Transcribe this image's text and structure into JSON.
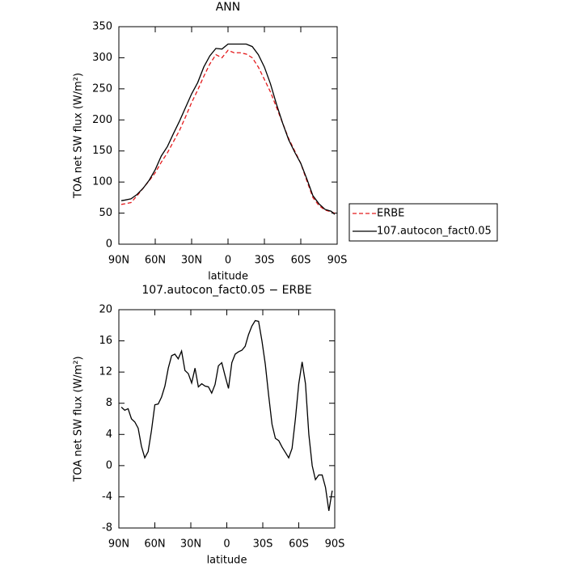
{
  "chart_data": [
    {
      "type": "line",
      "title": "ANN",
      "xlabel": "latitude",
      "ylabel": "TOA net SW flux (W/m²)",
      "x": [
        88,
        85,
        80,
        75,
        70,
        65,
        60,
        55,
        50,
        45,
        40,
        35,
        30,
        25,
        20,
        15,
        10,
        5,
        0,
        -5,
        -10,
        -15,
        -20,
        -25,
        -30,
        -35,
        -40,
        -45,
        -50,
        -55,
        -60,
        -65,
        -70,
        -75,
        -80,
        -85,
        -88
      ],
      "series": [
        {
          "name": "ERBE",
          "color": "#e41a1c",
          "dash": true,
          "values": [
            64,
            65,
            67,
            78,
            90,
            102,
            115,
            132,
            147,
            165,
            183,
            205,
            228,
            248,
            270,
            290,
            305,
            300,
            312,
            308,
            308,
            306,
            300,
            285,
            265,
            245,
            220,
            195,
            170,
            150,
            130,
            102,
            75,
            62,
            55,
            52,
            50
          ]
        },
        {
          "name": "107.autocon_fact0.05",
          "color": "#000000",
          "dash": false,
          "values": [
            70,
            71,
            73,
            80,
            90,
            103,
            120,
            142,
            157,
            178,
            198,
            220,
            242,
            260,
            285,
            303,
            315,
            314,
            322,
            322,
            322,
            322,
            318,
            305,
            285,
            258,
            225,
            195,
            168,
            148,
            130,
            105,
            78,
            65,
            56,
            53,
            48
          ]
        }
      ],
      "xlim": [
        90,
        -90
      ],
      "xticks": [
        {
          "value": 90,
          "label": "90N"
        },
        {
          "value": 60,
          "label": "60N"
        },
        {
          "value": 30,
          "label": "30N"
        },
        0,
        {
          "value": -30,
          "label": "30S"
        },
        {
          "value": -60,
          "label": "60S"
        },
        {
          "value": -90,
          "label": "90S"
        }
      ],
      "ylim": [
        0,
        350
      ],
      "yticks": [
        0,
        50,
        100,
        150,
        200,
        250,
        300,
        350
      ],
      "legend": "right"
    },
    {
      "type": "line",
      "title": "107.autocon_fact0.05 − ERBE",
      "xlabel": "latitude",
      "ylabel": "TOA net SW flux (W/m²)",
      "x": [
        87.9,
        85.1,
        82.3,
        79.5,
        76.7,
        73.9,
        71.2,
        68.4,
        65.6,
        62.8,
        60.0,
        57.2,
        54.4,
        51.6,
        48.8,
        46.0,
        43.3,
        40.5,
        37.7,
        34.9,
        32.1,
        29.3,
        26.5,
        23.7,
        20.9,
        18.1,
        15.3,
        12.6,
        9.8,
        7.0,
        4.2,
        1.4,
        -1.4,
        -4.2,
        -7.0,
        -9.8,
        -12.6,
        -15.3,
        -18.1,
        -20.9,
        -23.7,
        -26.5,
        -29.3,
        -32.1,
        -34.9,
        -37.7,
        -40.5,
        -43.3,
        -46.0,
        -48.8,
        -51.6,
        -54.4,
        -57.2,
        -60.0,
        -62.8,
        -65.6,
        -68.4,
        -71.2,
        -73.9,
        -76.7,
        -79.5,
        -82.3,
        -85.1,
        -87.9
      ],
      "series": [
        {
          "color": "#000000",
          "dash": false,
          "values": [
            7.5,
            7.1,
            7.3,
            6,
            5.6,
            4.8,
            2.5,
            1,
            1.8,
            4.5,
            7.8,
            7.9,
            8.8,
            10.2,
            12.5,
            14.1,
            14.3,
            13.7,
            14.7,
            12.2,
            11.8,
            10.6,
            12.5,
            10.1,
            10.5,
            10.2,
            10.1,
            9.3,
            10.4,
            12.8,
            13.2,
            11.5,
            9.9,
            13.2,
            14.3,
            14.6,
            14.8,
            15.3,
            16.8,
            17.9,
            18.6,
            18.5,
            16,
            13,
            9,
            5.3,
            3.5,
            3.2,
            2.4,
            1.7,
            1,
            2.2,
            6,
            10.5,
            13.3,
            10.5,
            4,
            0,
            -1.8,
            -1.2,
            -1.2,
            -2.8,
            -5.8,
            -3.2
          ]
        }
      ],
      "xlim": [
        90,
        -90
      ],
      "xticks": [
        {
          "value": 90,
          "label": "90N"
        },
        {
          "value": 60,
          "label": "60N"
        },
        {
          "value": 30,
          "label": "30N"
        },
        0,
        {
          "value": -30,
          "label": "30S"
        },
        {
          "value": -60,
          "label": "60S"
        },
        {
          "value": -90,
          "label": "90S"
        }
      ],
      "ylim": [
        -8,
        20
      ],
      "yticks": [
        -8,
        -4,
        0,
        4,
        8,
        12,
        16,
        20
      ]
    }
  ]
}
